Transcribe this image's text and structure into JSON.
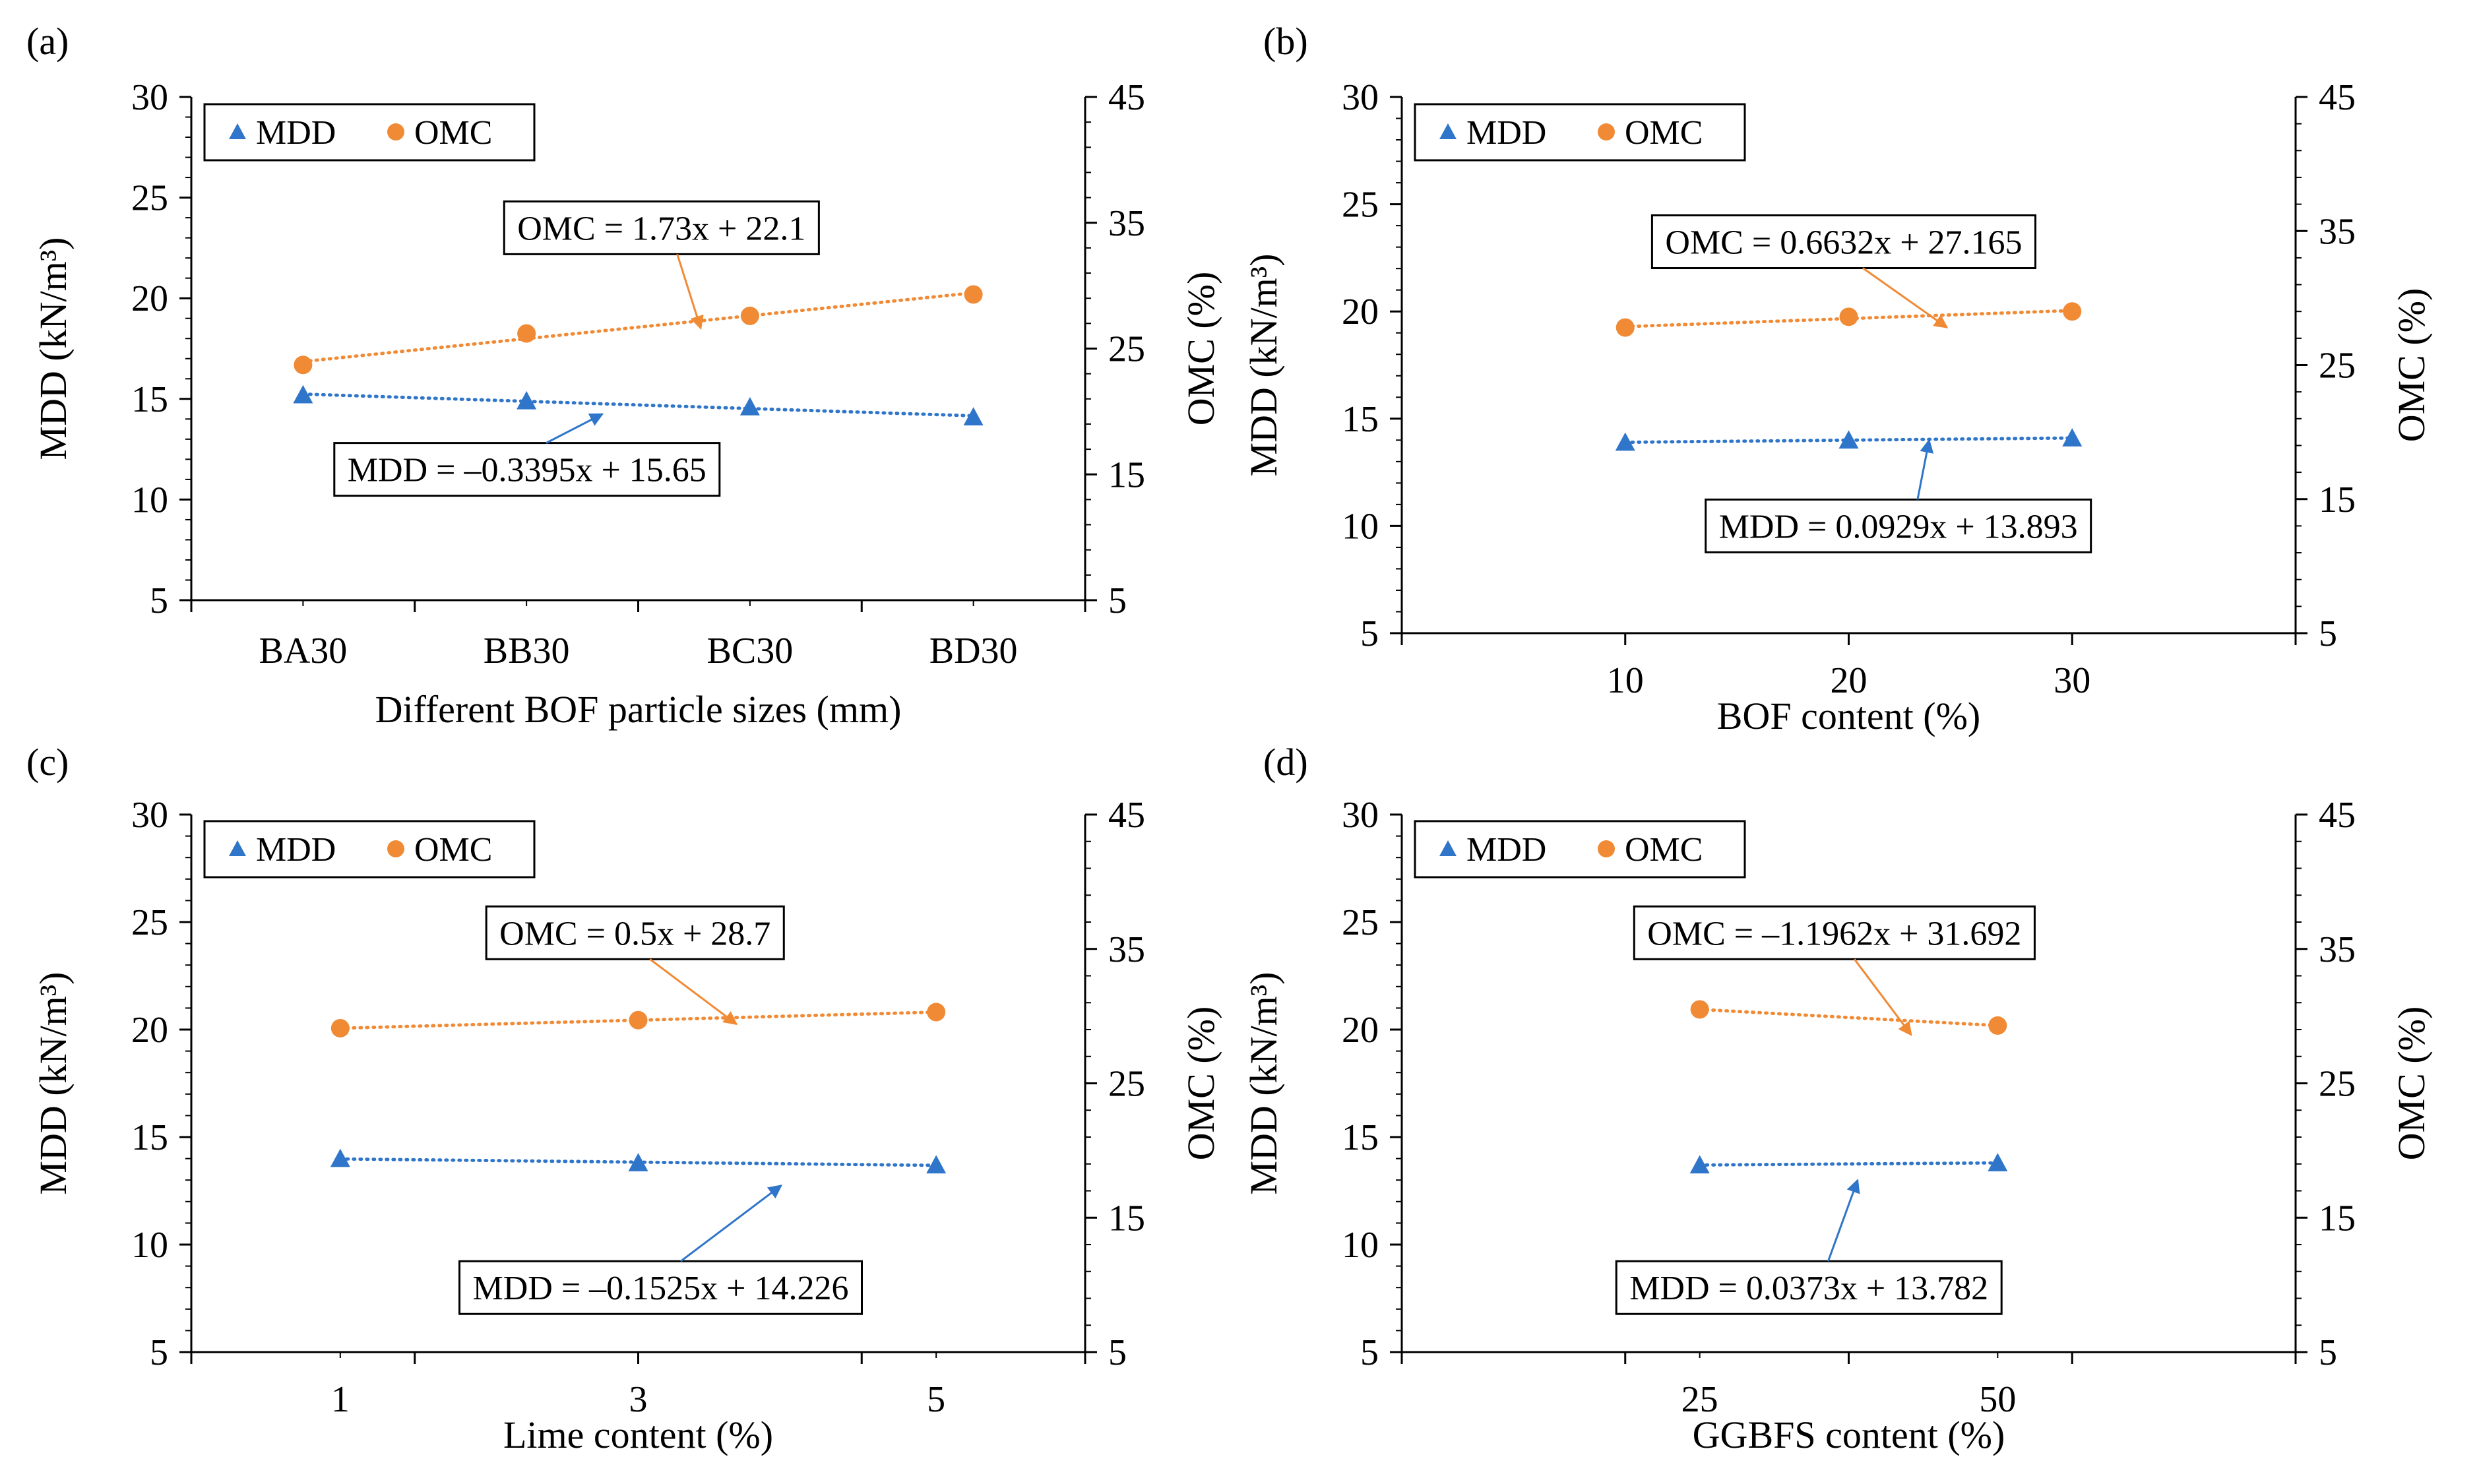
{
  "colors": {
    "mdd": "#2F75C9",
    "omc": "#F08A35",
    "axis": "#000000",
    "box": "#000000"
  },
  "legend": {
    "mdd": "MDD",
    "omc": "OMC",
    "placement": "top-left"
  },
  "chart_data": [
    {
      "panel_label": "(a)",
      "type": "scatter",
      "x_type": "categorical",
      "categories": [
        "BA30",
        "BB30",
        "BC30",
        "BD30"
      ],
      "xlabel": "Different BOF particle sizes (mm)",
      "ylabel_left": "MDD (kN/m³)",
      "ylabel_right": "OMC (%)",
      "ylim_left": [
        5,
        30
      ],
      "ylim_right": [
        5,
        45
      ],
      "yticks_left": [
        5,
        10,
        15,
        20,
        25,
        30
      ],
      "yticks_right": [
        5,
        15,
        25,
        35,
        45
      ],
      "grid": false,
      "series": [
        {
          "name": "MDD",
          "axis": "left",
          "marker": "triangle",
          "values": [
            15.2,
            14.9,
            14.6,
            14.1
          ],
          "trendline_label": "MDD = –0.3395x + 15.65"
        },
        {
          "name": "OMC",
          "axis": "right",
          "marker": "circle",
          "values": [
            23.7,
            26.2,
            27.6,
            29.3
          ],
          "trendline_label": "OMC = 1.73x + 22.1"
        }
      ]
    },
    {
      "panel_label": "(b)",
      "type": "scatter",
      "x_type": "numeric",
      "x": [
        10,
        20,
        30
      ],
      "xlim": [
        0,
        40
      ],
      "xticks_labeled": [
        10,
        20,
        30
      ],
      "xlabel": "BOF content (%)",
      "ylabel_left": "MDD (kN/m³)",
      "ylabel_right": "OMC (%)",
      "ylim_left": [
        5,
        30
      ],
      "ylim_right": [
        5,
        45
      ],
      "yticks_left": [
        5,
        10,
        15,
        20,
        25,
        30
      ],
      "yticks_right": [
        5,
        15,
        25,
        35,
        45
      ],
      "grid": false,
      "series": [
        {
          "name": "MDD",
          "axis": "left",
          "marker": "triangle",
          "values": [
            13.9,
            14.0,
            14.1
          ],
          "trendline_label": "MDD = 0.0929x + 13.893"
        },
        {
          "name": "OMC",
          "axis": "right",
          "marker": "circle",
          "values": [
            27.8,
            28.6,
            29.0
          ],
          "trendline_label": "OMC = 0.6632x + 27.165"
        }
      ]
    },
    {
      "panel_label": "(c)",
      "type": "scatter",
      "x_type": "numeric",
      "x": [
        1,
        3,
        5
      ],
      "xlim": [
        0,
        6
      ],
      "xticks_labeled": [
        1,
        3,
        5
      ],
      "xlabel": "Lime content (%)",
      "ylabel_left": "MDD (kN/m³)",
      "ylabel_right": "OMC (%)",
      "ylim_left": [
        5,
        30
      ],
      "ylim_right": [
        5,
        45
      ],
      "yticks_left": [
        5,
        10,
        15,
        20,
        25,
        30
      ],
      "yticks_right": [
        5,
        15,
        25,
        35,
        45
      ],
      "grid": false,
      "series": [
        {
          "name": "MDD",
          "axis": "left",
          "marker": "triangle",
          "values": [
            14.0,
            13.8,
            13.7
          ],
          "trendline_label": "MDD = –0.1525x + 14.226"
        },
        {
          "name": "OMC",
          "axis": "right",
          "marker": "circle",
          "values": [
            29.1,
            29.7,
            30.3
          ],
          "trendline_label": "OMC = 0.5x + 28.7"
        }
      ]
    },
    {
      "panel_label": "(d)",
      "type": "scatter",
      "x_type": "numeric",
      "x": [
        25,
        50
      ],
      "xlim": [
        0,
        75
      ],
      "xticks_labeled": [
        25,
        50
      ],
      "xlabel": "GGBFS content (%)",
      "ylabel_left": "MDD (kN/m³)",
      "ylabel_right": "OMC (%)",
      "ylim_left": [
        5,
        30
      ],
      "ylim_right": [
        5,
        45
      ],
      "yticks_left": [
        5,
        10,
        15,
        20,
        25,
        30
      ],
      "yticks_right": [
        5,
        15,
        25,
        35,
        45
      ],
      "grid": false,
      "series": [
        {
          "name": "MDD",
          "axis": "left",
          "marker": "triangle",
          "values": [
            13.7,
            13.8
          ],
          "trendline_label": "MDD = 0.0373x + 13.782"
        },
        {
          "name": "OMC",
          "axis": "right",
          "marker": "circle",
          "values": [
            30.5,
            29.3
          ],
          "trendline_label": "OMC = –1.1962x + 31.692"
        }
      ]
    }
  ]
}
